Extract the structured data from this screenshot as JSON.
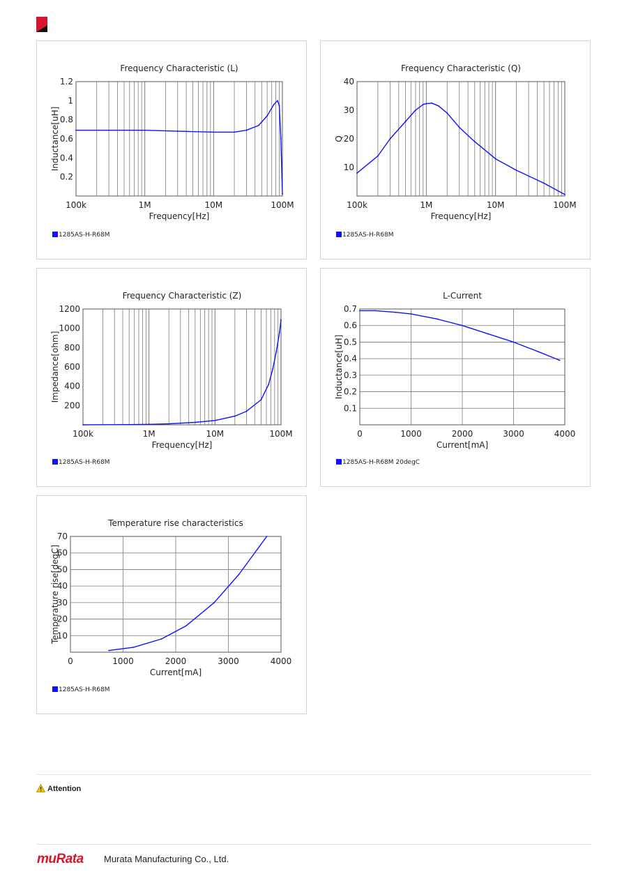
{
  "page": {
    "attention": "Attention",
    "company": "Murata Manufacturing Co., Ltd.",
    "logo_text": "muRata"
  },
  "colors": {
    "series": "#1010ff",
    "grid": "#7a7a7a",
    "brand": "#d6162b"
  },
  "charts": [
    {
      "legend": "1285AS-H-R68M"
    },
    {
      "legend": "1285AS-H-R68M"
    },
    {
      "legend": "1285AS-H-R68M"
    },
    {
      "legend": "1285AS-H-R68M 20degC"
    },
    {
      "legend": "1285AS-H-R68M"
    }
  ],
  "chart_data": [
    {
      "type": "line",
      "title": "Frequency Characteristic (L)",
      "xlabel": "Frequency[Hz]",
      "ylabel": "Inductance[uH]",
      "xscale": "log",
      "xlim": [
        100000,
        100000000
      ],
      "ylim": [
        0,
        1.2
      ],
      "xticks": [
        {
          "v": 100000,
          "label": "100k"
        },
        {
          "v": 1000000,
          "label": "1M"
        },
        {
          "v": 10000000,
          "label": "10M"
        },
        {
          "v": 100000000,
          "label": "100M"
        }
      ],
      "yticks": [
        {
          "v": 0.2,
          "label": "0.2"
        },
        {
          "v": 0.4,
          "label": "0.4"
        },
        {
          "v": 0.6,
          "label": "0.6"
        },
        {
          "v": 0.8,
          "label": "0.8"
        },
        {
          "v": 1,
          "label": "1"
        },
        {
          "v": 1.2,
          "label": "1.2"
        }
      ],
      "grid": "x-major-minor",
      "series": [
        {
          "name": "1285AS-H-R68M",
          "x": [
            100000,
            300000,
            1000000,
            3000000,
            10000000,
            20000000,
            30000000,
            45000000,
            60000000,
            75000000,
            85000000,
            90000000,
            95000000,
            100000000
          ],
          "y": [
            0.69,
            0.69,
            0.69,
            0.68,
            0.67,
            0.67,
            0.69,
            0.74,
            0.84,
            0.96,
            1.0,
            0.95,
            0.6,
            0.02
          ]
        }
      ]
    },
    {
      "type": "line",
      "title": "Frequency Characteristic (Q)",
      "xlabel": "Frequency[Hz]",
      "ylabel": "Q",
      "xscale": "log",
      "xlim": [
        100000,
        100000000
      ],
      "ylim": [
        0,
        40
      ],
      "xticks": [
        {
          "v": 100000,
          "label": "100k"
        },
        {
          "v": 1000000,
          "label": "1M"
        },
        {
          "v": 10000000,
          "label": "10M"
        },
        {
          "v": 100000000,
          "label": "100M"
        }
      ],
      "yticks": [
        {
          "v": 10,
          "label": "10"
        },
        {
          "v": 20,
          "label": "20"
        },
        {
          "v": 30,
          "label": "30"
        },
        {
          "v": 40,
          "label": "40"
        }
      ],
      "grid": "x-major-minor",
      "series": [
        {
          "name": "1285AS-H-R68M",
          "x": [
            100000,
            200000,
            300000,
            500000,
            700000,
            900000,
            1000000,
            1200000,
            1500000,
            2000000,
            3000000,
            5000000,
            10000000,
            20000000,
            50000000,
            100000000
          ],
          "y": [
            8,
            14,
            20,
            26,
            30,
            32,
            32.3,
            32.5,
            31.5,
            29,
            24,
            19,
            13,
            9,
            4.5,
            0.5
          ]
        }
      ]
    },
    {
      "type": "line",
      "title": "Frequency Characteristic (Z)",
      "xlabel": "Frequency[Hz]",
      "ylabel": "Impedance[ohm]",
      "xscale": "log",
      "xlim": [
        100000,
        100000000
      ],
      "ylim": [
        0,
        1200
      ],
      "xticks": [
        {
          "v": 100000,
          "label": "100k"
        },
        {
          "v": 1000000,
          "label": "1M"
        },
        {
          "v": 10000000,
          "label": "10M"
        },
        {
          "v": 100000000,
          "label": "100M"
        }
      ],
      "yticks": [
        {
          "v": 200,
          "label": "200"
        },
        {
          "v": 400,
          "label": "400"
        },
        {
          "v": 600,
          "label": "600"
        },
        {
          "v": 800,
          "label": "800"
        },
        {
          "v": 1000,
          "label": "1000"
        },
        {
          "v": 1200,
          "label": "1200"
        }
      ],
      "grid": "x-major-minor",
      "series": [
        {
          "name": "1285AS-H-R68M",
          "x": [
            100000,
            500000,
            1000000,
            2000000,
            5000000,
            10000000,
            20000000,
            30000000,
            50000000,
            65000000,
            75000000,
            85000000,
            95000000,
            100000000
          ],
          "y": [
            0,
            2,
            5,
            10,
            25,
            45,
            90,
            140,
            260,
            420,
            580,
            760,
            960,
            1090
          ]
        }
      ]
    },
    {
      "type": "line",
      "title": "L-Current",
      "xlabel": "Current[mA]",
      "ylabel": "Inductance[uH]",
      "xscale": "linear",
      "xlim": [
        0,
        4000
      ],
      "ylim": [
        0,
        0.7
      ],
      "xticks": [
        {
          "v": 0,
          "label": "0"
        },
        {
          "v": 1000,
          "label": "1000"
        },
        {
          "v": 2000,
          "label": "2000"
        },
        {
          "v": 3000,
          "label": "3000"
        },
        {
          "v": 4000,
          "label": "4000"
        }
      ],
      "yticks": [
        {
          "v": 0.1,
          "label": "0.1"
        },
        {
          "v": 0.2,
          "label": "0.2"
        },
        {
          "v": 0.3,
          "label": "0.3"
        },
        {
          "v": 0.4,
          "label": "0.4"
        },
        {
          "v": 0.5,
          "label": "0.5"
        },
        {
          "v": 0.6,
          "label": "0.6"
        },
        {
          "v": 0.7,
          "label": "0.7"
        }
      ],
      "grid": "both",
      "series": [
        {
          "name": "1285AS-H-R68M 20degC",
          "x": [
            0,
            300,
            700,
            1000,
            1500,
            2000,
            2500,
            3000,
            3500,
            3900
          ],
          "y": [
            0.69,
            0.69,
            0.68,
            0.67,
            0.64,
            0.6,
            0.55,
            0.5,
            0.44,
            0.39
          ]
        }
      ]
    },
    {
      "type": "line",
      "title": "Temperature rise characteristics",
      "xlabel": "Current[mA]",
      "ylabel": "Temperature rise[degC]",
      "xscale": "linear",
      "xlim": [
        0,
        4000
      ],
      "ylim": [
        0,
        70
      ],
      "xticks": [
        {
          "v": 0,
          "label": "0"
        },
        {
          "v": 1000,
          "label": "1000"
        },
        {
          "v": 2000,
          "label": "2000"
        },
        {
          "v": 3000,
          "label": "3000"
        },
        {
          "v": 4000,
          "label": "4000"
        }
      ],
      "yticks": [
        {
          "v": 10,
          "label": "10"
        },
        {
          "v": 20,
          "label": "20"
        },
        {
          "v": 30,
          "label": "30"
        },
        {
          "v": 40,
          "label": "40"
        },
        {
          "v": 50,
          "label": "50"
        },
        {
          "v": 60,
          "label": "60"
        },
        {
          "v": 70,
          "label": "70"
        }
      ],
      "grid": "both",
      "series": [
        {
          "name": "1285AS-H-R68M",
          "x": [
            730,
            1200,
            1730,
            2200,
            2730,
            3200,
            3730
          ],
          "y": [
            1,
            3,
            8,
            16,
            30,
            47,
            70
          ]
        }
      ]
    }
  ]
}
